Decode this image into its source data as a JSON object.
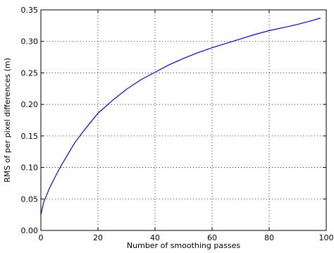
{
  "chart_data": {
    "type": "line",
    "title": "",
    "xlabel": "Number of smoothing passes",
    "ylabel": "RMS of per pixel differences (m)",
    "xlim": [
      0,
      100
    ],
    "ylim": [
      0.0,
      0.35
    ],
    "xticks": [
      "0",
      "20",
      "40",
      "60",
      "80",
      "100"
    ],
    "yticks": [
      "0.00",
      "0.05",
      "0.10",
      "0.15",
      "0.20",
      "0.25",
      "0.30",
      "0.35"
    ],
    "grid": true,
    "line_color": "#0000ff",
    "series": [
      {
        "x": [
          0,
          1,
          2,
          3,
          5,
          7,
          10,
          12,
          15,
          20,
          25,
          30,
          35,
          40,
          45,
          50,
          55,
          60,
          65,
          70,
          75,
          80,
          85,
          90,
          95,
          98
        ],
        "values": [
          0.025,
          0.045,
          0.056,
          0.067,
          0.085,
          0.102,
          0.125,
          0.14,
          0.158,
          0.186,
          0.206,
          0.224,
          0.239,
          0.251,
          0.263,
          0.273,
          0.282,
          0.29,
          0.297,
          0.304,
          0.311,
          0.317,
          0.322,
          0.327,
          0.333,
          0.337
        ]
      }
    ]
  }
}
